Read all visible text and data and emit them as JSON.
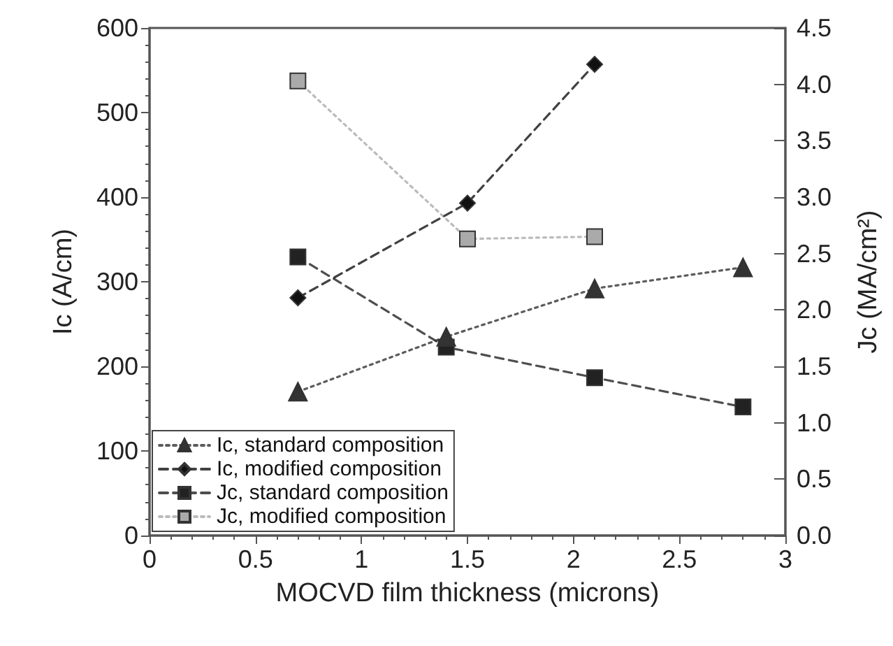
{
  "chart_data": {
    "type": "line",
    "xlabel": "MOCVD film thickness (microns)",
    "ylabel": "Ic (A/cm)",
    "y2label": "Jc (MA/cm²)",
    "xlim": [
      0,
      3
    ],
    "xticks": [
      0,
      0.5,
      1,
      1.5,
      2,
      2.5,
      3
    ],
    "ylim": [
      0,
      600
    ],
    "yticks": [
      0,
      100,
      200,
      300,
      400,
      500,
      600
    ],
    "y2lim": [
      0,
      4.5
    ],
    "y2ticks": [
      {
        "value": 0,
        "label": "0.0"
      },
      {
        "value": 0.5,
        "label": "0.5"
      },
      {
        "value": 1,
        "label": "1.0"
      },
      {
        "value": 1.5,
        "label": "1.5"
      },
      {
        "value": 2,
        "label": "2.0"
      },
      {
        "value": 2.5,
        "label": "2.5"
      },
      {
        "value": 3,
        "label": "3.0"
      },
      {
        "value": 3.5,
        "label": "3.5"
      },
      {
        "value": 4,
        "label": "4.0"
      },
      {
        "value": 4.5,
        "label": "4.5"
      }
    ],
    "grid": false,
    "legend": "bottom left",
    "series": [
      {
        "name": "Ic, standard composition",
        "color": "#333333",
        "marker": "triangle",
        "line_style": "dotted",
        "x": [
          0.7,
          1.4,
          2.1,
          2.8
        ],
        "values": [
          170,
          235,
          292,
          317
        ]
      },
      {
        "name": "Ic, modified composition",
        "color": "#111111",
        "marker": "diamond",
        "line_style": "dashed",
        "x": [
          0.7,
          1.5,
          2.1
        ],
        "values": [
          281,
          393,
          557
        ]
      },
      {
        "name": "Jc, standard composition",
        "color": "#222222",
        "marker": "square",
        "line_style": "dashed",
        "axis": "y2",
        "x": [
          0.7,
          1.4,
          2.1,
          2.8
        ],
        "values": [
          2.47,
          1.67,
          1.4,
          1.14
        ]
      },
      {
        "name": "Jc, modified composition",
        "color": "#aaaaaa",
        "marker": "square",
        "line_style": "dotted",
        "axis": "y2",
        "x": [
          0.7,
          1.5,
          2.1
        ],
        "values": [
          4.03,
          2.63,
          2.65
        ]
      }
    ]
  }
}
